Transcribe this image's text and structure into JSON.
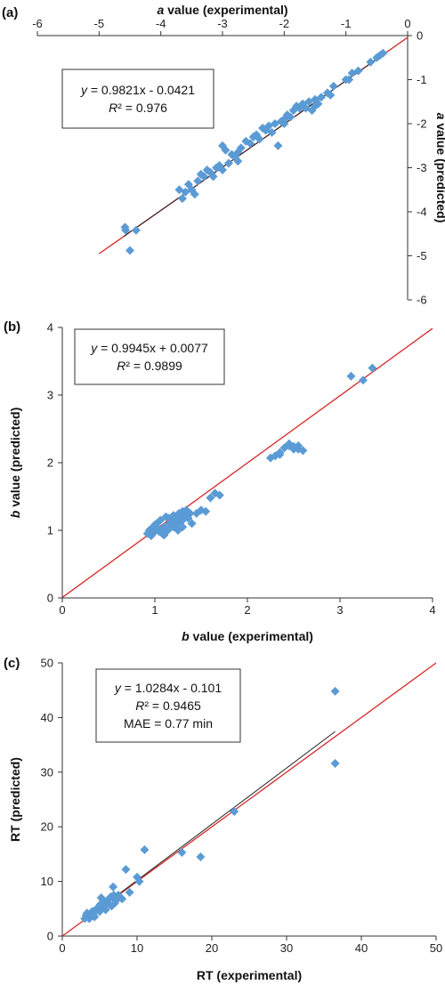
{
  "chart_data": [
    {
      "type": "scatter",
      "panel_label": "(a)",
      "xlabel_var": "a",
      "xlabel_rest": " value (experimental)",
      "ylabel_var": "a",
      "ylabel_rest": " value (predicted)",
      "xlim": [
        -6,
        0
      ],
      "ylim": [
        -6,
        0
      ],
      "xticks": [
        -6,
        -5,
        -4,
        -3,
        -2,
        -1,
        0
      ],
      "yticks": [
        0,
        -1,
        -2,
        -3,
        -4,
        -5,
        -6
      ],
      "legend": {
        "equation": "y = 0.9821x - 0.0421",
        "r2": "R² = 0.976",
        "mae": ""
      },
      "fit_line": {
        "slope": 0.9821,
        "intercept": -0.0421,
        "x_range": [
          -5.0,
          0
        ]
      },
      "trend_line": {
        "slope": 0.9821,
        "intercept": -0.0421,
        "x_range": [
          -4.6,
          -0.35
        ]
      },
      "points": {
        "x": [
          -4.58,
          -4.57,
          -4.5,
          -4.4,
          -3.7,
          -3.65,
          -3.6,
          -3.55,
          -3.5,
          -3.45,
          -3.4,
          -3.35,
          -3.3,
          -3.25,
          -3.2,
          -3.15,
          -3.1,
          -3.05,
          -3.0,
          -2.95,
          -2.9,
          -2.85,
          -2.8,
          -2.75,
          -2.7,
          -2.62,
          -2.55,
          -2.5,
          -2.45,
          -2.4,
          -2.35,
          -2.3,
          -2.25,
          -2.2,
          -2.15,
          -2.1,
          -2.05,
          -2.0,
          -1.95,
          -1.9,
          -1.85,
          -1.8,
          -1.7,
          -1.65,
          -1.6,
          -1.55,
          -1.5,
          -1.45,
          -1.4,
          -1.3,
          -1.25,
          -1.2,
          -1.0,
          -0.95,
          -0.9,
          -0.8,
          -0.6,
          -0.5,
          -0.45,
          -0.4,
          -3.0,
          -2.0,
          -1.75,
          -1.5,
          -2.75
        ],
        "y": [
          -4.35,
          -4.42,
          -4.88,
          -4.42,
          -3.5,
          -3.7,
          -3.55,
          -3.38,
          -3.5,
          -3.6,
          -3.3,
          -3.15,
          -3.2,
          -3.05,
          -3.1,
          -3.2,
          -3.0,
          -2.95,
          -2.5,
          -2.6,
          -2.9,
          -2.7,
          -2.75,
          -2.65,
          -2.55,
          -2.4,
          -2.45,
          -2.3,
          -2.25,
          -2.35,
          -2.1,
          -2.15,
          -2.05,
          -2.2,
          -2.0,
          -2.5,
          -1.95,
          -2.0,
          -1.8,
          -1.85,
          -1.7,
          -1.6,
          -1.55,
          -1.65,
          -1.5,
          -1.7,
          -1.45,
          -1.55,
          -1.4,
          -1.3,
          -1.35,
          -1.15,
          -1.0,
          -1.0,
          -0.85,
          -0.8,
          -0.6,
          -0.5,
          -0.45,
          -0.4,
          -3.05,
          -1.9,
          -1.65,
          -1.6,
          -2.85
        ]
      }
    },
    {
      "type": "scatter",
      "panel_label": "(b)",
      "xlabel_var": "b",
      "xlabel_rest": " value (experimental)",
      "ylabel_var": "b",
      "ylabel_rest": " value (predicted)",
      "xlim": [
        0,
        4
      ],
      "ylim": [
        0,
        4
      ],
      "xticks": [
        0,
        1,
        2,
        3,
        4
      ],
      "yticks": [
        0,
        1,
        2,
        3,
        4
      ],
      "legend": {
        "equation": "y = 0.9945x + 0.0077",
        "r2": "R² = 0.9899",
        "mae": ""
      },
      "fit_line": {
        "slope": 0.9945,
        "intercept": 0.0077,
        "x_range": [
          0,
          4
        ]
      },
      "trend_line": null,
      "points": {
        "x": [
          0.92,
          0.94,
          0.96,
          0.98,
          1.0,
          1.02,
          1.04,
          1.06,
          1.08,
          1.1,
          1.12,
          1.14,
          1.16,
          1.18,
          1.2,
          1.22,
          1.24,
          1.26,
          1.28,
          1.3,
          1.32,
          1.34,
          1.36,
          1.38,
          1.4,
          1.45,
          1.5,
          1.55,
          1.6,
          1.65,
          1.7,
          1.0,
          1.05,
          1.1,
          1.15,
          1.2,
          1.25,
          1.3,
          1.35,
          0.95,
          1.1,
          1.2,
          1.3,
          2.25,
          2.3,
          2.35,
          2.4,
          2.45,
          2.5,
          2.55,
          2.6,
          2.35,
          2.45,
          2.5,
          2.55,
          3.12,
          3.25,
          3.35
        ],
        "y": [
          0.95,
          1.0,
          0.92,
          1.05,
          0.98,
          1.1,
          1.02,
          1.15,
          0.95,
          1.05,
          1.2,
          1.0,
          1.1,
          1.12,
          1.05,
          1.2,
          1.1,
          1.25,
          1.15,
          1.28,
          1.22,
          1.3,
          1.18,
          1.25,
          1.1,
          1.25,
          1.3,
          1.28,
          1.48,
          1.55,
          1.52,
          1.08,
          0.98,
          0.93,
          1.18,
          1.22,
          1.0,
          1.15,
          1.2,
          0.97,
          1.0,
          1.15,
          1.05,
          2.07,
          2.1,
          2.15,
          2.22,
          2.25,
          2.2,
          2.25,
          2.18,
          2.12,
          2.28,
          2.24,
          2.2,
          3.28,
          3.22,
          3.4
        ]
      }
    },
    {
      "type": "scatter",
      "panel_label": "(c)",
      "xlabel_var": "",
      "xlabel_rest": "RT (experimental)",
      "ylabel_var": "",
      "ylabel_rest": "RT (predicted)",
      "xlim": [
        0,
        50
      ],
      "ylim": [
        0,
        50
      ],
      "xticks": [
        0,
        10,
        20,
        30,
        40,
        50
      ],
      "yticks": [
        0,
        10,
        20,
        30,
        40,
        50
      ],
      "legend": {
        "equation": "y = 1.0284x - 0.101",
        "r2": "R² = 0.9465",
        "mae": "MAE = 0.77 min"
      },
      "fit_line": {
        "slope": 1.0,
        "intercept": 0.0,
        "x_range": [
          0,
          50
        ]
      },
      "trend_line": {
        "slope": 1.0284,
        "intercept": -0.101,
        "x_range": [
          3,
          36.5
        ]
      },
      "points": {
        "x": [
          3.0,
          3.2,
          3.5,
          3.8,
          4.0,
          4.2,
          4.5,
          4.8,
          5.0,
          5.2,
          5.5,
          5.8,
          6.0,
          6.3,
          6.5,
          6.8,
          7.0,
          7.5,
          8.0,
          8.5,
          3.3,
          3.6,
          4.1,
          4.6,
          5.1,
          5.6,
          6.6,
          7.2,
          9.0,
          10.0,
          10.3,
          11.0,
          16.0,
          18.5,
          23.0,
          36.5,
          36.5,
          4.3,
          5.3,
          6.9
        ],
        "y": [
          3.2,
          3.8,
          3.5,
          4.0,
          4.5,
          3.8,
          4.8,
          5.2,
          4.5,
          7.0,
          5.5,
          4.8,
          6.5,
          5.8,
          7.2,
          9.0,
          6.0,
          7.5,
          6.8,
          12.2,
          4.2,
          3.2,
          4.2,
          5.0,
          5.8,
          6.2,
          5.5,
          6.5,
          8.0,
          10.8,
          10.0,
          15.8,
          15.3,
          14.5,
          22.8,
          44.8,
          31.6,
          3.5,
          5.3,
          7.5
        ]
      }
    }
  ]
}
